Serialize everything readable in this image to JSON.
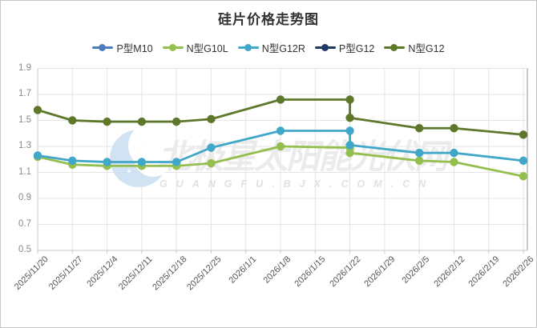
{
  "title": "硅片价格走势图",
  "watermark": {
    "main": "北极星太阳能光伏网",
    "sub": "GUANGFU.BJX.COM.CN"
  },
  "chart_data": {
    "type": "line",
    "title": "硅片价格走势图",
    "x_labels": [
      "2025/11/20",
      "2025/11/27",
      "2025/12/4",
      "2025/12/11",
      "2025/12/18",
      "2025/12/25",
      "2026/1/1",
      "2026/1/8",
      "2026/1/15",
      "2026/1/22",
      "2026/1/29",
      "2026/2/5",
      "2026/2/12",
      "2026/2/19",
      "2026/2/26"
    ],
    "xlabel": "",
    "ylabel": "",
    "ylim": [
      0.5,
      1.9
    ],
    "y_ticks": [
      1.9,
      1.7,
      1.5,
      1.3,
      1.1,
      0.9,
      0.7,
      0.5
    ],
    "grid": true,
    "legend_position": "top",
    "colors": {
      "grid_line": "#e4e4e4",
      "axis_line": "#c9c9c9",
      "y_tick_text": "#8a8a8a",
      "x_tick_text": "#555555",
      "title_text": "#333333"
    },
    "series": [
      {
        "name": "P型M10",
        "color": "#4d7cba",
        "points": []
      },
      {
        "name": "N型G10L",
        "color": "#94be4e",
        "points": [
          [
            0,
            1.22
          ],
          [
            1,
            1.16
          ],
          [
            2,
            1.15
          ],
          [
            3,
            1.15
          ],
          [
            4,
            1.15
          ],
          [
            5,
            1.17
          ],
          [
            7,
            1.3
          ],
          [
            9,
            1.29
          ],
          [
            9,
            1.25
          ],
          [
            11,
            1.19
          ],
          [
            12,
            1.18
          ],
          [
            14,
            1.07
          ]
        ]
      },
      {
        "name": "N型G12R",
        "color": "#41a7c8",
        "points": [
          [
            0,
            1.23
          ],
          [
            1,
            1.19
          ],
          [
            2,
            1.18
          ],
          [
            3,
            1.18
          ],
          [
            4,
            1.18
          ],
          [
            5,
            1.29
          ],
          [
            7,
            1.42
          ],
          [
            9,
            1.42
          ],
          [
            9,
            1.31
          ],
          [
            11,
            1.25
          ],
          [
            12,
            1.25
          ],
          [
            14,
            1.19
          ]
        ]
      },
      {
        "name": "P型G12",
        "color": "#1e3a62",
        "points": []
      },
      {
        "name": "N型G12",
        "color": "#5d782a",
        "points": [
          [
            0,
            1.58
          ],
          [
            1,
            1.5
          ],
          [
            2,
            1.49
          ],
          [
            3,
            1.49
          ],
          [
            4,
            1.49
          ],
          [
            5,
            1.51
          ],
          [
            7,
            1.66
          ],
          [
            9,
            1.66
          ],
          [
            9,
            1.52
          ],
          [
            11,
            1.44
          ],
          [
            12,
            1.44
          ],
          [
            14,
            1.39
          ]
        ]
      }
    ]
  }
}
